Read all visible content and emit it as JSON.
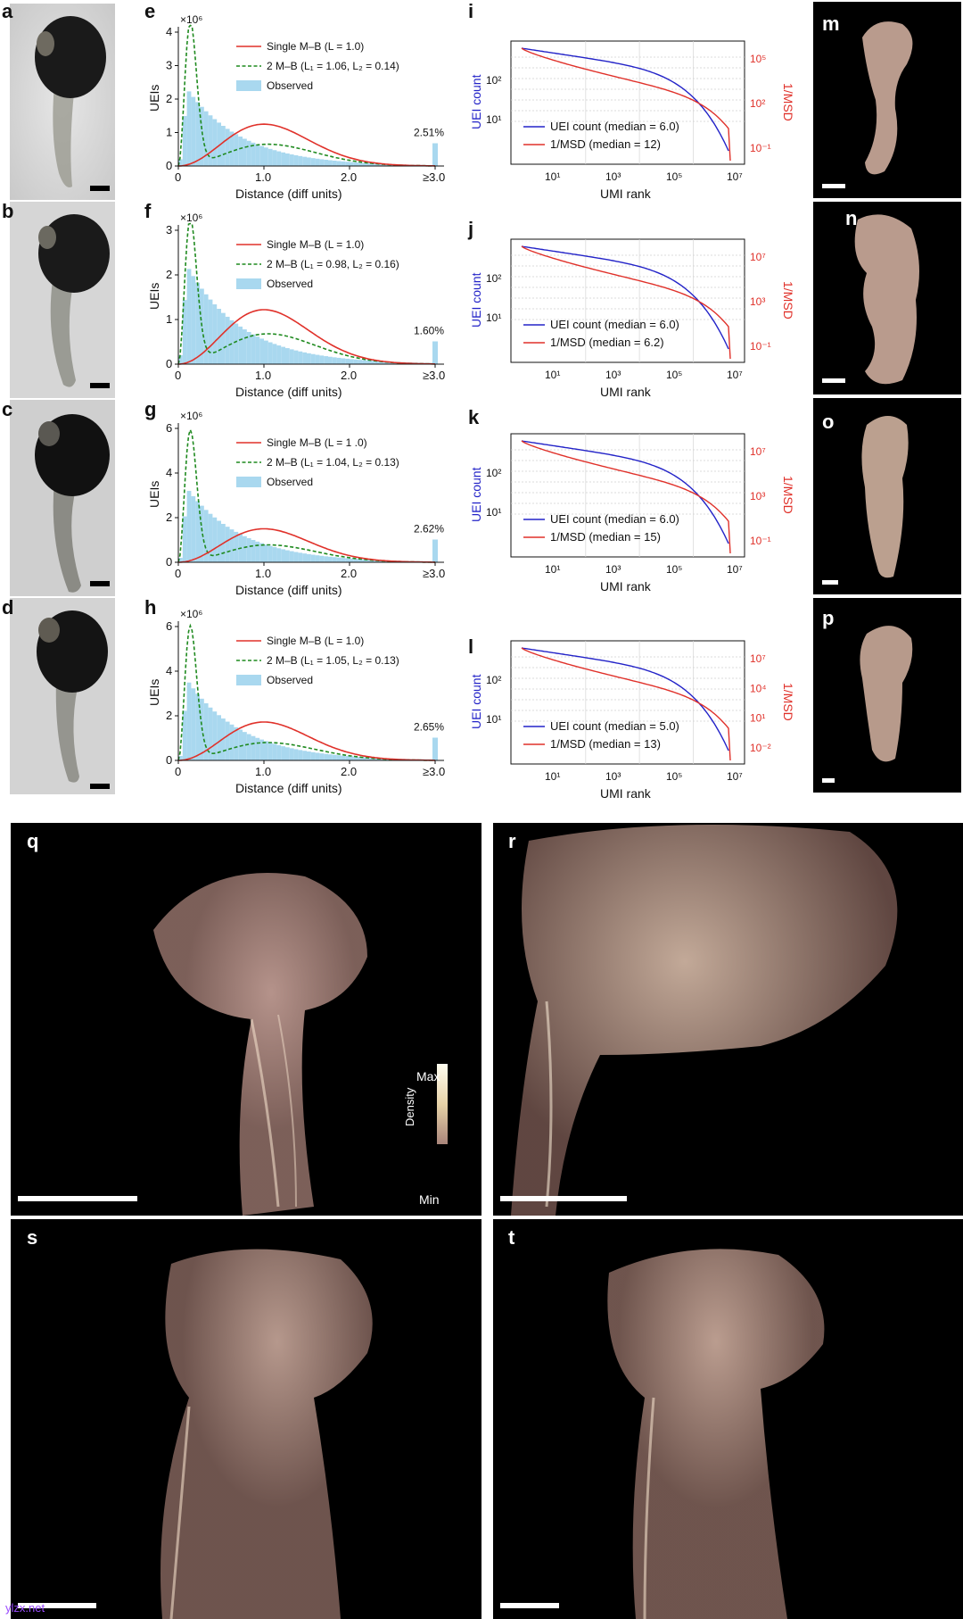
{
  "panel_letters": {
    "a": "a",
    "b": "b",
    "c": "c",
    "d": "d",
    "e": "e",
    "f": "f",
    "g": "g",
    "h": "h",
    "i": "i",
    "j": "j",
    "k": "k",
    "l": "l",
    "m": "m",
    "n": "n",
    "o": "o",
    "p": "p",
    "q": "q",
    "r": "r",
    "s": "s",
    "t": "t"
  },
  "distance_panels": [
    {
      "id": "e",
      "exponent": "×10⁶",
      "ylabel": "UEIs",
      "xlabel": "Distance (diff units)",
      "ymax": 4,
      "yticks": [
        0,
        1,
        2,
        3,
        4
      ],
      "legend": [
        "Single M–B (L = 1.0)",
        "2 M–B (L₁ = 1.06, L₂ = 0.14)",
        "Observed"
      ],
      "overflow_pct": "2.51%",
      "peak_green": 4.3,
      "peak_red": 1.25,
      "obs_peak": 2.3,
      "green2": 0.65
    },
    {
      "id": "f",
      "exponent": "×10⁶",
      "ylabel": "UEIs",
      "xlabel": "Distance (diff units)",
      "ymax": 3,
      "yticks": [
        0,
        1,
        2,
        3
      ],
      "legend": [
        "Single M–B (L = 1.0)",
        "2 M–B (L₁ = 0.98, L₂ = 0.16)",
        "Observed"
      ],
      "overflow_pct": "1.60%",
      "peak_green": 3.25,
      "peak_red": 1.22,
      "obs_peak": 2.2,
      "green2": 0.68
    },
    {
      "id": "g",
      "exponent": "×10⁶",
      "ylabel": "UEIs",
      "xlabel": "Distance (diff units)",
      "ymax": 6,
      "yticks": [
        0,
        2,
        4,
        6
      ],
      "legend": [
        "Single M–B (L = 1 .0)",
        "2 M–B (L₁ = 1.04, L₂ = 0.13)",
        "Observed"
      ],
      "overflow_pct": "2.62%",
      "peak_green": 5.9,
      "peak_red": 1.5,
      "obs_peak": 3.3,
      "green2": 0.78
    },
    {
      "id": "h",
      "exponent": "×10⁶",
      "ylabel": "UEIs",
      "xlabel": "Distance (diff units)",
      "ymax": 6,
      "yticks": [
        0,
        2,
        4,
        6
      ],
      "legend": [
        "Single M–B (L = 1.0)",
        "2 M–B (L₁ = 1.05, L₂ = 0.13)",
        "Observed"
      ],
      "overflow_pct": "2.65%",
      "peak_green": 6.0,
      "peak_red": 1.72,
      "obs_peak": 3.6,
      "green2": 0.8
    }
  ],
  "distance_xticks": [
    "0",
    "1.0",
    "2.0",
    "≥3.0"
  ],
  "rank_panels": [
    {
      "id": "i",
      "ylabel_left": "UEI count",
      "ylabel_right": "1/MSD",
      "xlabel": "UMI rank",
      "legend": [
        "UEI count (median = 6.0)",
        "1/MSD (median = 12)"
      ],
      "left_ticks": [
        "10¹",
        "10²"
      ],
      "right_ticks": [
        "10⁵",
        "10²",
        "10⁻¹"
      ]
    },
    {
      "id": "j",
      "ylabel_left": "UEI count",
      "ylabel_right": "1/MSD",
      "xlabel": "UMI rank",
      "legend": [
        "UEI count (median = 6.0)",
        "1/MSD (median = 6.2)"
      ],
      "left_ticks": [
        "10¹",
        "10²"
      ],
      "right_ticks": [
        "10⁷",
        "10³",
        "10⁻¹"
      ]
    },
    {
      "id": "k",
      "ylabel_left": "UEI count",
      "ylabel_right": "1/MSD",
      "xlabel": "UMI rank",
      "legend": [
        "UEI count (median = 6.0)",
        "1/MSD (median = 15)"
      ],
      "left_ticks": [
        "10¹",
        "10²"
      ],
      "right_ticks": [
        "10⁷",
        "10³",
        "10⁻¹"
      ]
    },
    {
      "id": "l",
      "ylabel_left": "UEI count",
      "ylabel_right": "1/MSD",
      "xlabel": "UMI rank",
      "legend": [
        "UEI count (median = 5.0)",
        "1/MSD (median = 13)"
      ],
      "left_ticks": [
        "10¹",
        "10²"
      ],
      "right_ticks": [
        "10⁷",
        "10⁴",
        "10¹",
        "10⁻²"
      ]
    }
  ],
  "rank_xticks": [
    "10¹",
    "10³",
    "10⁵",
    "10⁷"
  ],
  "colorbar": {
    "title": "Density",
    "max": "Max",
    "min": "Min"
  },
  "watermark": "ylzx.net",
  "colors": {
    "red": "#e0312a",
    "green": "#1f8a1f",
    "blue_fill": "#a9d8ef",
    "blue_line": "#2323c8",
    "specimen": "#e8c7b4"
  }
}
